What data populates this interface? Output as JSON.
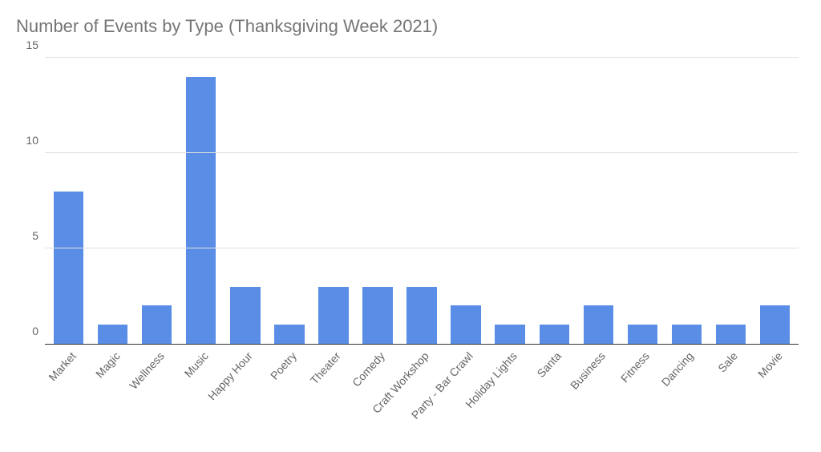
{
  "chart": {
    "type": "bar",
    "title": "Number of Events by Type (Thanksgiving Week 2021)",
    "title_color": "#757575",
    "title_fontsize": 22,
    "categories": [
      "Market",
      "Magic",
      "Wellness",
      "Music",
      "Happy Hour",
      "Poetry",
      "Theater",
      "Comedy",
      "Craft Workshop",
      "Party - Bar Crawl",
      "Holiday Lights",
      "Santa",
      "Business",
      "Fitness",
      "Dancing",
      "Sale",
      "Movie"
    ],
    "values": [
      8,
      1,
      2,
      14,
      3,
      1,
      3,
      3,
      3,
      2,
      1,
      1,
      2,
      1,
      1,
      1,
      2
    ],
    "bar_color": "#5a8ee6",
    "background_color": "#ffffff",
    "grid_color": "#e0e0e0",
    "axis_color": "#333333",
    "label_color": "#666666",
    "label_fontsize": 14,
    "ylim": [
      0,
      15.5
    ],
    "yticks": [
      0,
      5,
      10,
      15
    ],
    "bar_width": 0.68,
    "xlabel_rotation_deg": -48
  }
}
